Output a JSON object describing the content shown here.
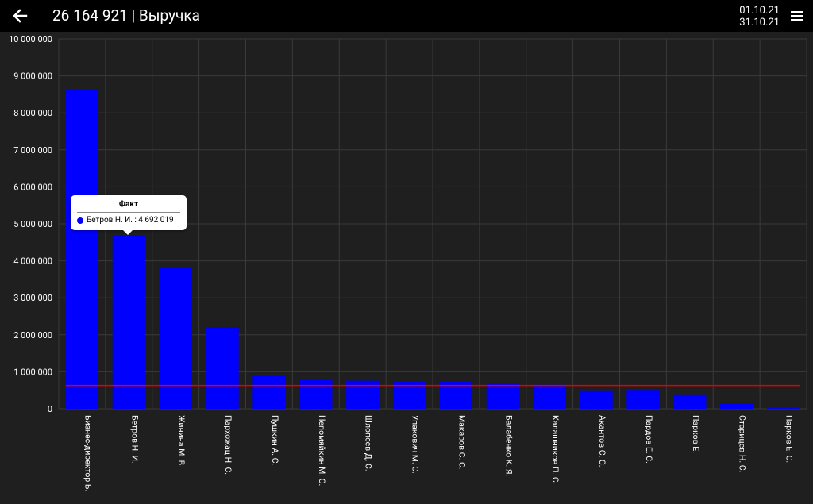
{
  "header": {
    "title": "26 164 921 | Выручка",
    "date_from": "01.10.21",
    "date_to": "31.10.21",
    "back_icon": "arrow-left-icon",
    "menu_icon": "hamburger-menu-icon"
  },
  "colors": {
    "background": "#1f1f1f",
    "topbar": "#000000",
    "bar": "#0000ff",
    "avg_line": "#e00000",
    "grid": "#3a3a3a"
  },
  "tooltip": {
    "title": "Факт",
    "text": "Бетров Н. И. : 4 692 019"
  },
  "chart_data": {
    "type": "bar",
    "categories": [
      "Бизнес-директор Б.",
      "Бетров Н. И.",
      "Жинина М. В.",
      "Пархожац Н. С.",
      "Пушкин А. С.",
      "Непомяйкин М. С.",
      "Шлопсев Д. С.",
      "Упакович М. С.",
      "Макаров С. С.",
      "Балабенко К. Я.",
      "Калашников П. С.",
      "Акантов С. С.",
      "Пардов Е. С.",
      "Парков Е.",
      "Старицев Н. С.",
      "Парков Е. С."
    ],
    "series": [
      {
        "values": [
          8610000,
          4692019,
          3810000,
          2200000,
          900000,
          800000,
          760000,
          750000,
          750000,
          690000,
          650000,
          500000,
          510000,
          370000,
          140000,
          20000
        ]
      }
    ],
    "average_line": 630000,
    "ylim": [
      0,
      10000000
    ],
    "yticks": [
      0,
      1000000,
      2000000,
      3000000,
      4000000,
      5000000,
      6000000,
      7000000,
      8000000,
      9000000,
      10000000
    ],
    "ytick_labels": [
      "0",
      "1 000 000",
      "2 000 000",
      "3 000 000",
      "4 000 000",
      "5 000 000",
      "6 000 000",
      "7 000 000",
      "8 000 000",
      "9 000 000",
      "10 000 000"
    ],
    "grid": true,
    "legend": "none"
  }
}
